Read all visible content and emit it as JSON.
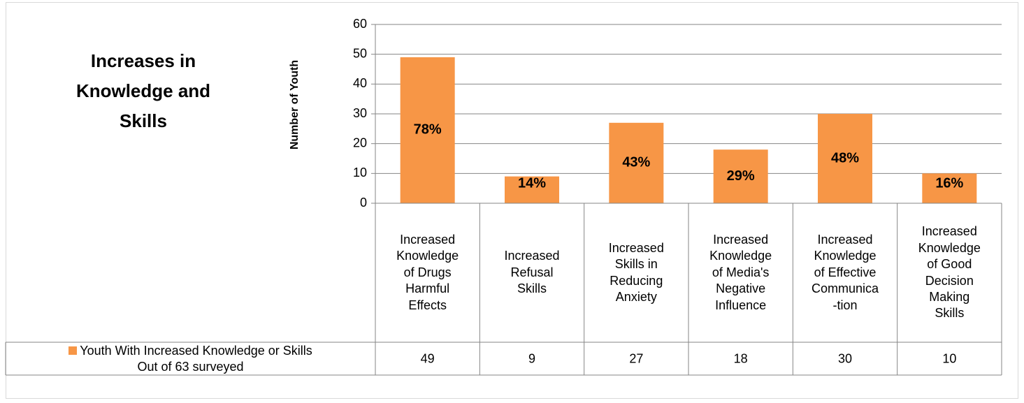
{
  "chart_data": {
    "type": "bar",
    "title": "Increases in\nKnowledge and\nSkills",
    "y_label": "Number of Youth",
    "categories": [
      "Increased\nKnowledge\nof Drugs\nHarmful\nEffects",
      "Increased\nRefusal\nSkills",
      "Increased\nSkills in\nReducing\nAnxiety",
      "Increased\nKnowledge\nof Media's\nNegative\nInfluence",
      "Increased\nKnowledge\nof Effective\nCommunica\n-tion",
      "Increased\nKnowledge\nof Good\nDecision\nMaking\nSkills"
    ],
    "series": [
      {
        "name": "Youth With Increased Knowledge or Skills\nOut of 63 surveyed",
        "color": "#F79646",
        "values": [
          49,
          9,
          27,
          18,
          30,
          10
        ],
        "data_labels": [
          "78%",
          "14%",
          "43%",
          "29%",
          "48%",
          "16%"
        ]
      }
    ],
    "ylim": [
      0,
      60
    ],
    "yticks": [
      0,
      10,
      20,
      30,
      40,
      50,
      60
    ],
    "grid": true,
    "data_table": true
  }
}
